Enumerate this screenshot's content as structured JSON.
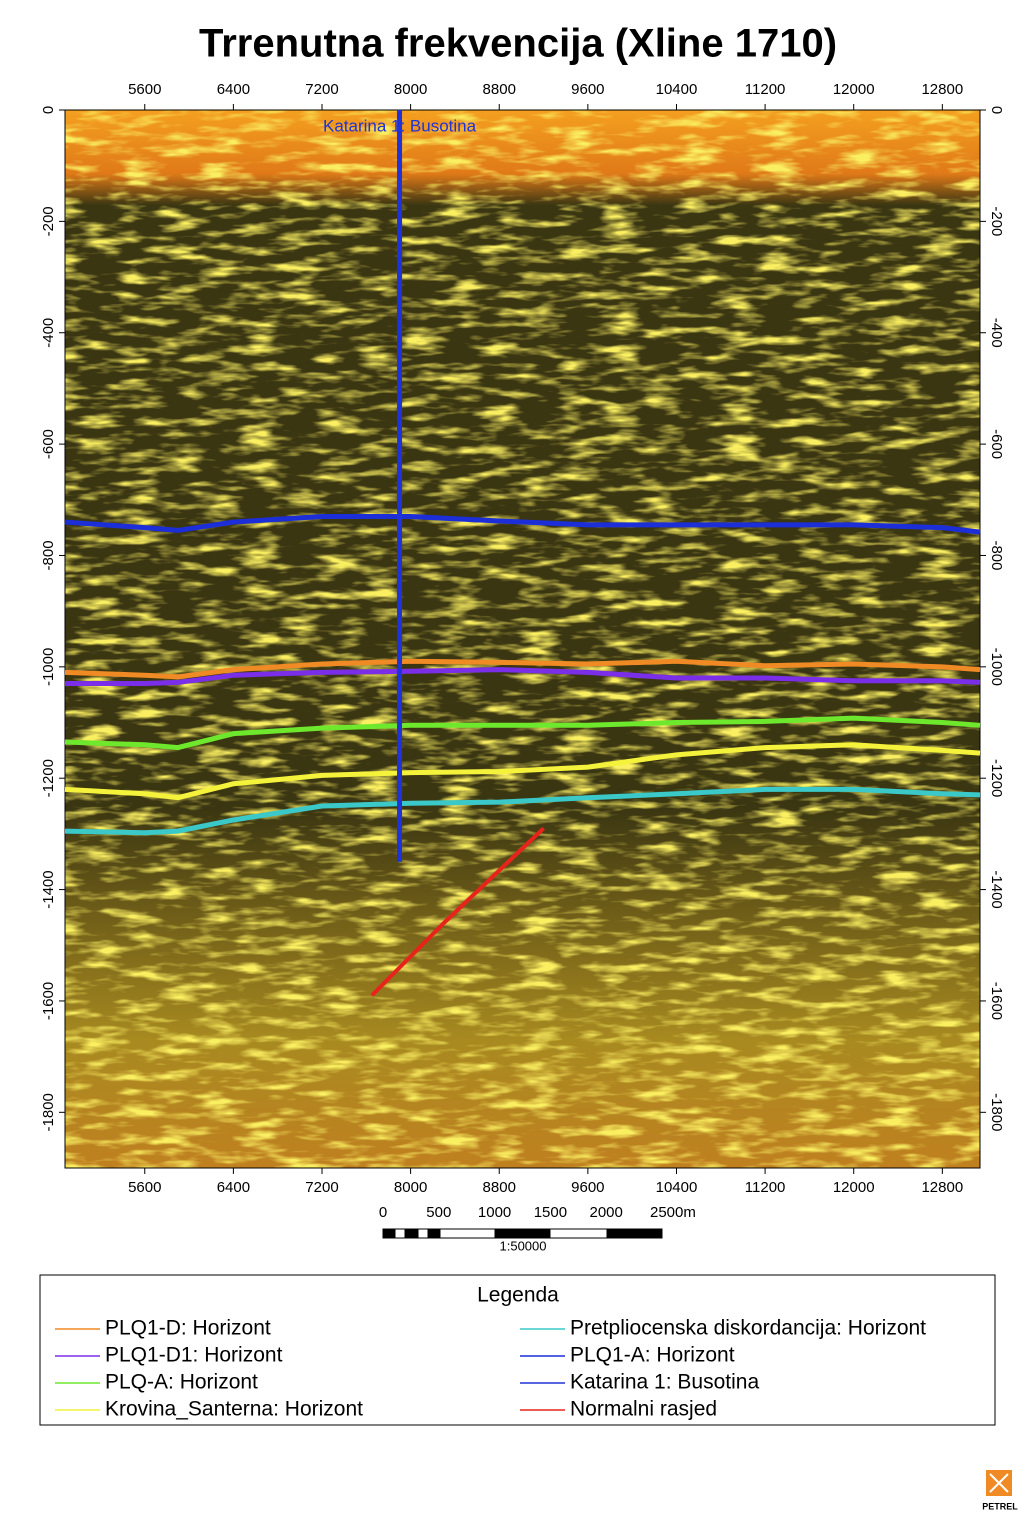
{
  "chart_data": {
    "type": "seismic-section",
    "title": "Trrenutna frekvencija (Xline 1710)",
    "xlim": [
      4880,
      13140
    ],
    "xticks": [
      5600,
      6400,
      7200,
      8000,
      8800,
      9600,
      10400,
      11200,
      12000,
      12800
    ],
    "ylim": [
      -1900,
      0
    ],
    "yticks": [
      0,
      -200,
      -400,
      -600,
      -800,
      -1000,
      -1200,
      -1400,
      -1600,
      -1800
    ],
    "x": [
      4880,
      5600,
      5900,
      6400,
      7200,
      8000,
      8800,
      9600,
      10400,
      11200,
      12000,
      12800,
      13140
    ],
    "series": [
      {
        "name": "PLQ1-D: Horizont",
        "color": "#f08a24",
        "values": [
          -1010,
          -1015,
          -1018,
          -1005,
          -995,
          -990,
          -992,
          -995,
          -990,
          -998,
          -995,
          -1000,
          -1005
        ]
      },
      {
        "name": "PLQ1-D1: Horizont",
        "color": "#7a2ee8",
        "values": [
          -1030,
          -1030,
          -1028,
          -1015,
          -1010,
          -1008,
          -1005,
          -1010,
          -1020,
          -1020,
          -1025,
          -1025,
          -1028
        ]
      },
      {
        "name": "PLQ-A: Horizont",
        "color": "#6ee82c",
        "values": [
          -1135,
          -1140,
          -1145,
          -1120,
          -1110,
          -1105,
          -1105,
          -1105,
          -1100,
          -1098,
          -1092,
          -1100,
          -1105
        ]
      },
      {
        "name": "Krovina_Santerna: Horizont",
        "color": "#f4f23a",
        "values": [
          -1220,
          -1228,
          -1235,
          -1210,
          -1195,
          -1190,
          -1188,
          -1180,
          -1158,
          -1145,
          -1140,
          -1150,
          -1155
        ]
      },
      {
        "name": "Pretpliocenska  diskordancija: Horizont",
        "color": "#3ac8c8",
        "values": [
          -1295,
          -1298,
          -1295,
          -1275,
          -1250,
          -1245,
          -1243,
          -1235,
          -1228,
          -1220,
          -1220,
          -1228,
          -1230
        ]
      },
      {
        "name": "PLQ1-A: Horizont",
        "color": "#1b2ed8",
        "values": [
          -740,
          -750,
          -755,
          -740,
          -730,
          -730,
          -738,
          -745,
          -745,
          -745,
          -745,
          -750,
          -758
        ]
      }
    ],
    "well": {
      "name": "Katarina 1: Busotina",
      "color": "#2033d8",
      "x": [
        7900,
        7900
      ],
      "values": [
        0,
        -1350
      ]
    },
    "fault": {
      "name": "Normalni rasjed",
      "color": "#e8231c",
      "x": [
        7650,
        8300,
        9200
      ],
      "values": [
        -1590,
        -1460,
        -1290
      ]
    },
    "legend_title": "Legenda",
    "scale_bar": {
      "labels": [
        "0",
        "500",
        "1000",
        "1500",
        "2000",
        "2500m"
      ],
      "ratio": "1:50000"
    },
    "logo": "PETREL"
  }
}
